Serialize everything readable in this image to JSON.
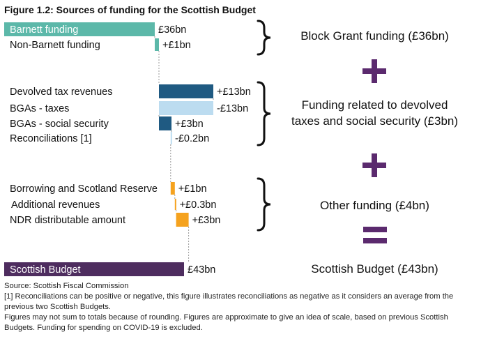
{
  "title": "Figure 1.2: Sources of funding for the Scottish Budget",
  "chart_data": {
    "type": "bar",
    "subtype": "waterfall",
    "categories": [
      "Barnett funding",
      "Non-Barnett funding",
      "Devolved tax revenues",
      "BGAs - taxes",
      "BGAs - social security",
      "Reconciliations [1]",
      "Borrowing and Scotland Reserve",
      "Additional revenues",
      "NDR distributable amount",
      "Scottish Budget"
    ],
    "values": [
      36,
      1,
      13,
      -13,
      3,
      -0.2,
      1,
      0.3,
      3,
      43
    ],
    "value_labels": [
      "£36bn",
      "+£1bn",
      "+£13bn",
      "-£13bn",
      "+£3bn",
      "-£0.2bn",
      "+£1bn",
      "+£0.3bn",
      "+£3bn",
      "£43bn"
    ],
    "bar_colors": [
      "#5cb8a9",
      "#5cb8a9",
      "#1f5a82",
      "#bcdcf0",
      "#1f5a82",
      "#bcdcf0",
      "#f5a21e",
      "#f5a21e",
      "#f5a21e",
      "#4e2d5f"
    ],
    "label_inside": [
      true,
      false,
      false,
      false,
      false,
      false,
      false,
      false,
      false,
      true
    ],
    "label_color_inside": "#ffffff",
    "groups": [
      {
        "label": "Block Grant funding (£36bn)",
        "members": [
          0,
          1
        ]
      },
      {
        "label_lines": [
          "Funding related to devolved",
          "taxes and social security (£3bn)"
        ],
        "members": [
          2,
          3,
          4,
          5
        ]
      },
      {
        "label": "Other funding (£4bn)",
        "members": [
          6,
          7,
          8
        ]
      }
    ],
    "total_label": "Scottish Budget (£43bn)",
    "operators": [
      "+",
      "+",
      "="
    ],
    "operator_color": "#5b2a6e",
    "connector_color": "#999999"
  },
  "notes": [
    "Source: Scottish Fiscal Commission",
    "[1] Reconciliations can be positive or negative, this figure illustrates reconciliations as negative as it considers an average from the previous two Scottish Budgets.",
    "Figures may not sum to totals because of rounding. Figures are approximate to give an idea of scale, based on previous Scottish Budgets. Funding for spending on COVID-19 is excluded."
  ]
}
